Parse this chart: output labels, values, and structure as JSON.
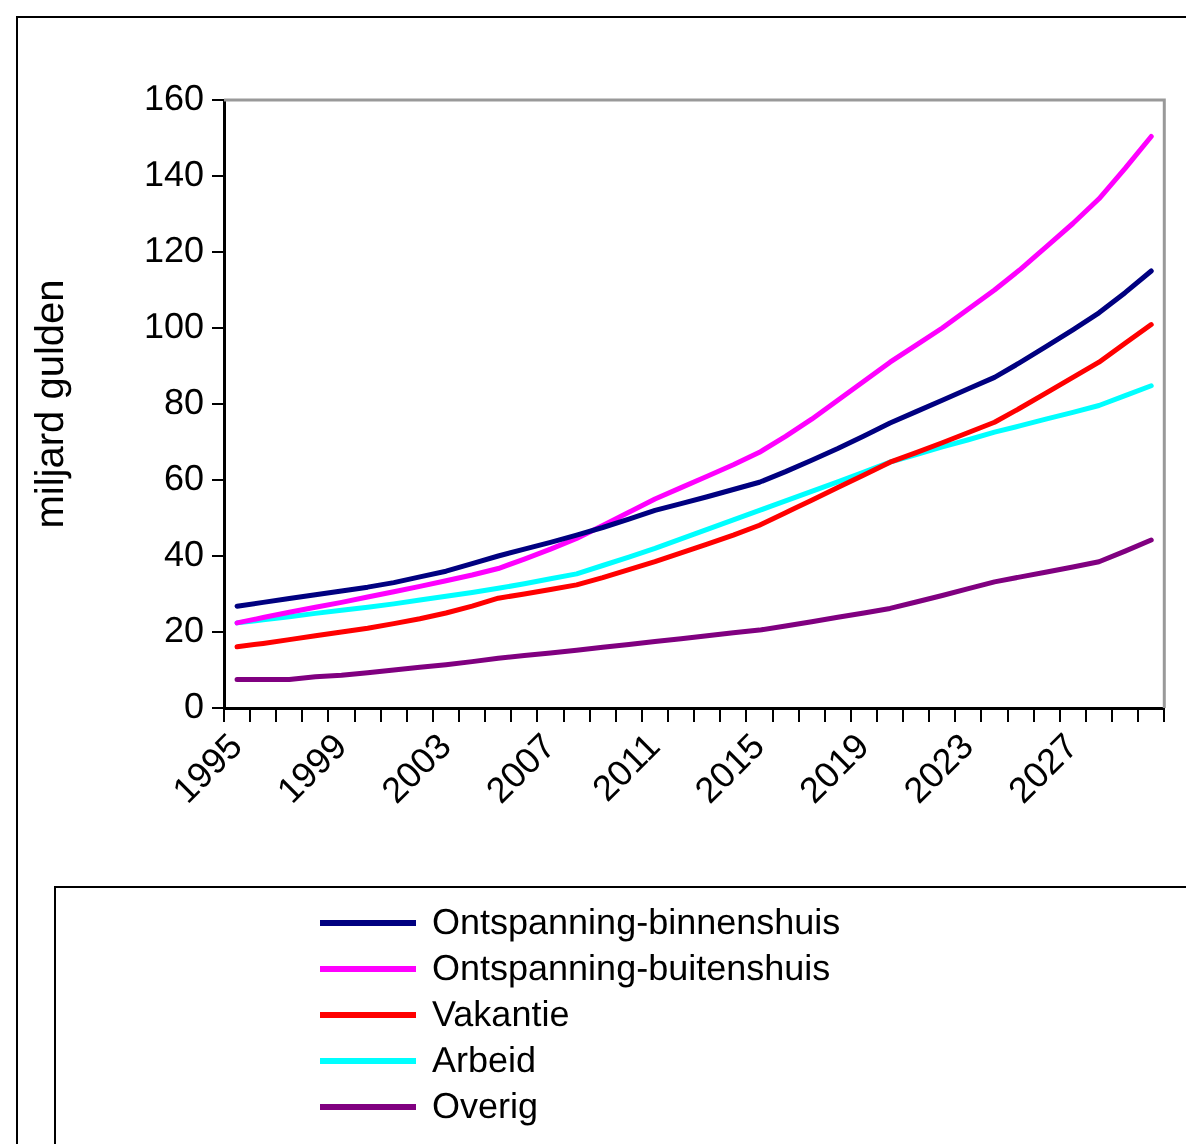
{
  "chart_data": {
    "type": "line",
    "ylabel": "miljard gulden",
    "categories": [
      "1995",
      null,
      null,
      null,
      "1999",
      null,
      null,
      null,
      "2003",
      null,
      null,
      null,
      "2007",
      null,
      null,
      null,
      "2011",
      null,
      null,
      null,
      "2015",
      null,
      null,
      null,
      "2019",
      null,
      null,
      null,
      "2023",
      null,
      null,
      null,
      "2027",
      null,
      null,
      null
    ],
    "series": [
      {
        "name": "Ontspanning-binnenshuis",
        "color": "#000080",
        "values": [
          26.8,
          27.8,
          28.8,
          29.8,
          30.8,
          31.8,
          33,
          34.5,
          36,
          38,
          40,
          41.8,
          43.6,
          45.5,
          47.5,
          49.7,
          52,
          53.8,
          55.6,
          57.5,
          59.4,
          62.2,
          65.2,
          68.3,
          71.6,
          75,
          78,
          81,
          84,
          87,
          91,
          95.2,
          99.5,
          104,
          109.3,
          115
        ]
      },
      {
        "name": "Ontspanning-buitenshuis",
        "color": "#ff00ff",
        "values": [
          22.4,
          23.8,
          25.2,
          26.5,
          27.8,
          29.2,
          30.6,
          32,
          33.5,
          35,
          36.7,
          39.2,
          41.8,
          44.6,
          48,
          51.5,
          55,
          58,
          61,
          64,
          67.3,
          71.5,
          76,
          81,
          86,
          91,
          95.5,
          100,
          105,
          110,
          115.5,
          121.5,
          127.5,
          134,
          142,
          150.4
        ]
      },
      {
        "name": "Vakantie",
        "color": "#ff0000",
        "values": [
          16.1,
          17,
          18,
          19,
          20,
          21,
          22.2,
          23.5,
          25,
          26.8,
          28.9,
          30,
          31.2,
          32.4,
          34.3,
          36.4,
          38.5,
          40.8,
          43.1,
          45.5,
          48.1,
          51.4,
          54.7,
          58,
          61.3,
          64.7,
          67.2,
          69.8,
          72.5,
          75.2,
          79,
          83,
          87,
          91,
          96,
          100.9
        ]
      },
      {
        "name": "Arbeid",
        "color": "#00ffff",
        "values": [
          22.4,
          23.2,
          24,
          24.9,
          25.7,
          26.5,
          27.4,
          28.4,
          29.4,
          30.4,
          31.5,
          32.7,
          34,
          35.3,
          37.5,
          39.7,
          42,
          44.5,
          47,
          49.5,
          52,
          54.5,
          57,
          59.5,
          62.1,
          64.7,
          66.7,
          68.7,
          70.6,
          72.6,
          74.3,
          76.1,
          77.8,
          79.6,
          82.2,
          84.8
        ]
      },
      {
        "name": "Overig",
        "color": "#800080",
        "values": [
          7.5,
          7.5,
          7.5,
          8.2,
          8.6,
          9.3,
          10,
          10.7,
          11.4,
          12.2,
          13.1,
          13.8,
          14.5,
          15.2,
          16,
          16.7,
          17.5,
          18.2,
          19,
          19.8,
          20.5,
          21.6,
          22.7,
          23.9,
          25,
          26.2,
          27.9,
          29.6,
          31.4,
          33.2,
          34.5,
          35.8,
          37.1,
          38.5,
          41.3,
          44.2
        ]
      }
    ],
    "ylim": [
      0,
      160
    ],
    "yticks": [
      0,
      20,
      40,
      60,
      80,
      100,
      120,
      140,
      160
    ],
    "grid": false,
    "legend": "bottom",
    "marker": "none"
  }
}
